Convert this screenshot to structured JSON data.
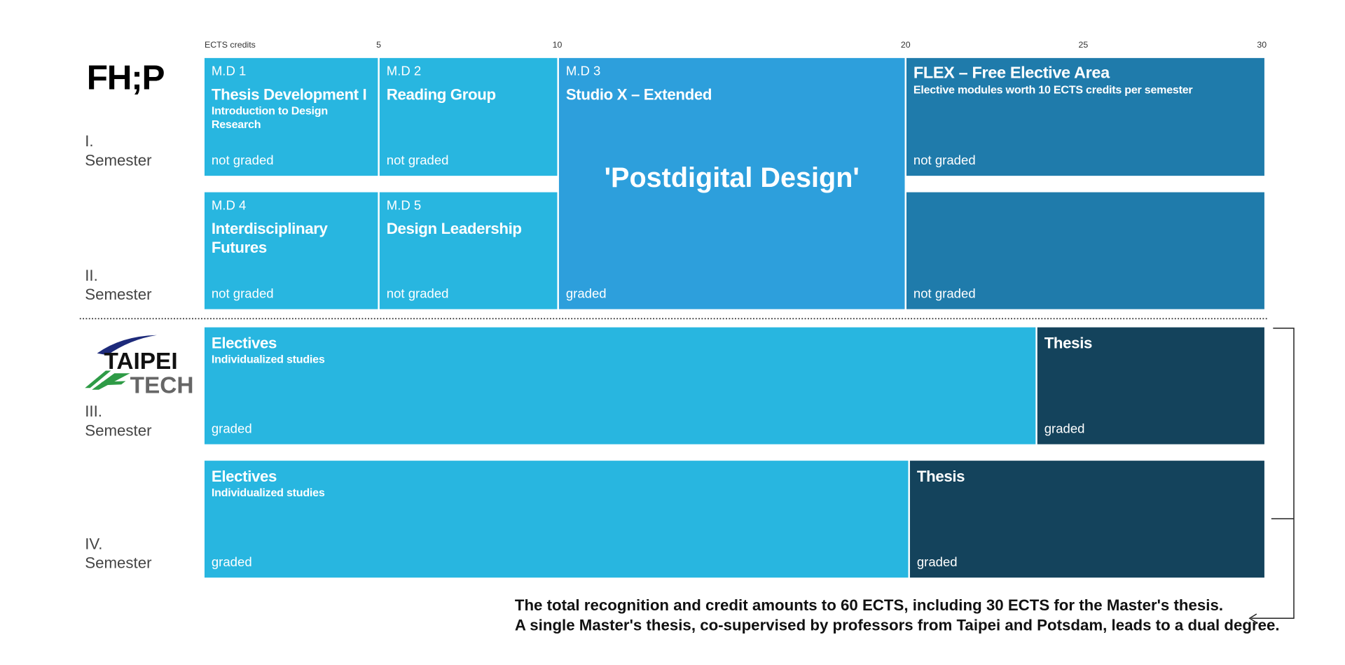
{
  "axis": {
    "label": "ECTS credits",
    "ticks": [
      5,
      10,
      20,
      25,
      30
    ]
  },
  "logos": {
    "fhp": "FH;P",
    "taipei_tech": [
      "TAIPEI",
      "TECH"
    ]
  },
  "semesters": [
    {
      "number": "I.",
      "label": "Semester"
    },
    {
      "number": "II.",
      "label": "Semester"
    },
    {
      "number": "III.",
      "label": "Semester"
    },
    {
      "number": "IV.",
      "label": "Semester"
    }
  ],
  "modules": [
    {
      "code": "M.D 1",
      "title": "Thesis Development I",
      "subtitle": "Introduction to Design Research",
      "grading": "not graded"
    },
    {
      "code": "M.D 2",
      "title": "Reading Group",
      "grading": "not graded"
    },
    {
      "code": "M.D 3",
      "title": "Studio X – Extended",
      "highlight": "'Postdigital Design'",
      "grading": "graded"
    },
    {
      "title": "FLEX – Free Elective Area",
      "subtitle": "Elective modules worth 10 ECTS credits per semester",
      "grading": "not graded"
    },
    {
      "grading": "not graded"
    },
    {
      "code": "M.D 4",
      "title": "Interdisciplinary Futures",
      "grading": "not graded"
    },
    {
      "code": "M.D 5",
      "title": "Design Leadership",
      "grading": "not graded"
    },
    {
      "title": "Electives",
      "subtitle": "Individualized studies",
      "grading": "graded"
    },
    {
      "title": "Thesis",
      "grading": "graded"
    },
    {
      "title": "Electives",
      "subtitle": "Individualized studies",
      "grading": "graded"
    },
    {
      "title": "Thesis",
      "grading": "graded"
    }
  ],
  "footer": [
    "The total recognition and credit amounts to 60 ECTS, including 30 ECTS for the Master's thesis.",
    "A single Master's thesis, co-supervised by professors from Taipei and Potsdam, leads to a dual degree."
  ]
}
